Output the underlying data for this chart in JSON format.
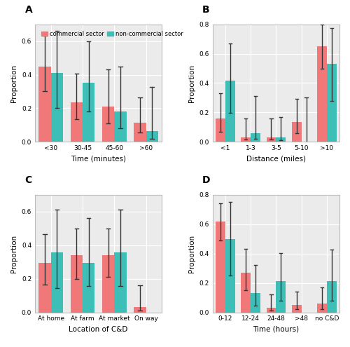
{
  "panel_A": {
    "label": "A",
    "categories": [
      "<30",
      "30-45",
      "45-60",
      ">60"
    ],
    "commercial_vals": [
      0.45,
      0.235,
      0.21,
      0.115
    ],
    "commercial_err_low": [
      0.15,
      0.1,
      0.1,
      0.06
    ],
    "commercial_err_high": [
      0.18,
      0.17,
      0.22,
      0.15
    ],
    "noncommercial_vals": [
      0.41,
      0.35,
      0.18,
      0.065
    ],
    "noncommercial_err_low": [
      0.21,
      0.17,
      0.1,
      0.045
    ],
    "noncommercial_err_high": [
      0.25,
      0.25,
      0.27,
      0.26
    ],
    "xlabel": "Time (minutes)",
    "ylabel": "Proportion",
    "ylim": [
      0,
      0.7
    ]
  },
  "panel_B": {
    "label": "B",
    "categories": [
      "<1",
      "1-3",
      "3-5",
      "5-10",
      ">10"
    ],
    "commercial_vals": [
      0.16,
      0.03,
      0.03,
      0.135,
      0.65
    ],
    "commercial_err_low": [
      0.09,
      0.015,
      0.015,
      0.075,
      0.15
    ],
    "commercial_err_high": [
      0.17,
      0.13,
      0.13,
      0.16,
      0.15
    ],
    "noncommercial_vals": [
      0.415,
      0.06,
      0.03,
      0.0,
      0.53
    ],
    "noncommercial_err_low": [
      0.22,
      0.04,
      0.02,
      0.0,
      0.25
    ],
    "noncommercial_err_high": [
      0.255,
      0.25,
      0.14,
      0.3,
      0.245
    ],
    "xlabel": "Distance (miles)",
    "ylabel": "Proportion",
    "ylim": [
      0,
      0.8
    ]
  },
  "panel_C": {
    "label": "C",
    "categories": [
      "At home",
      "At farm",
      "At market",
      "On way"
    ],
    "commercial_vals": [
      0.295,
      0.34,
      0.34,
      0.03
    ],
    "commercial_err_low": [
      0.13,
      0.14,
      0.13,
      0.02
    ],
    "commercial_err_high": [
      0.17,
      0.16,
      0.16,
      0.13
    ],
    "noncommercial_vals": [
      0.355,
      0.295,
      0.355,
      0.0
    ],
    "noncommercial_err_low": [
      0.21,
      0.14,
      0.2,
      0.0
    ],
    "noncommercial_err_high": [
      0.255,
      0.265,
      0.255,
      0.0
    ],
    "xlabel": "Location of C&D",
    "ylabel": "Proportion",
    "ylim": [
      0,
      0.7
    ]
  },
  "panel_D": {
    "label": "D",
    "categories": [
      "0-12",
      "12-24",
      "24-48",
      ">48",
      "no C&D"
    ],
    "commercial_vals": [
      0.62,
      0.27,
      0.03,
      0.05,
      0.06
    ],
    "commercial_err_low": [
      0.13,
      0.12,
      0.02,
      0.03,
      0.04
    ],
    "commercial_err_high": [
      0.12,
      0.16,
      0.09,
      0.09,
      0.11
    ],
    "noncommercial_vals": [
      0.5,
      0.13,
      0.21,
      0.0,
      0.21
    ],
    "noncommercial_err_low": [
      0.25,
      0.085,
      0.13,
      0.0,
      0.13
    ],
    "noncommercial_err_high": [
      0.25,
      0.19,
      0.195,
      0.0,
      0.215
    ],
    "xlabel": "Time (hours)",
    "ylabel": "Proportion",
    "ylim": [
      0,
      0.8
    ]
  },
  "color_commercial": "#F07878",
  "color_noncommercial": "#3DBFB8",
  "bar_width": 0.38,
  "figure_bg": "#FFFFFF",
  "axes_bg": "#EBEBEB",
  "grid_color": "#FFFFFF",
  "spine_color": "#BBBBBB",
  "legend_labels": [
    "commercial sector",
    "non-commercial sector"
  ]
}
